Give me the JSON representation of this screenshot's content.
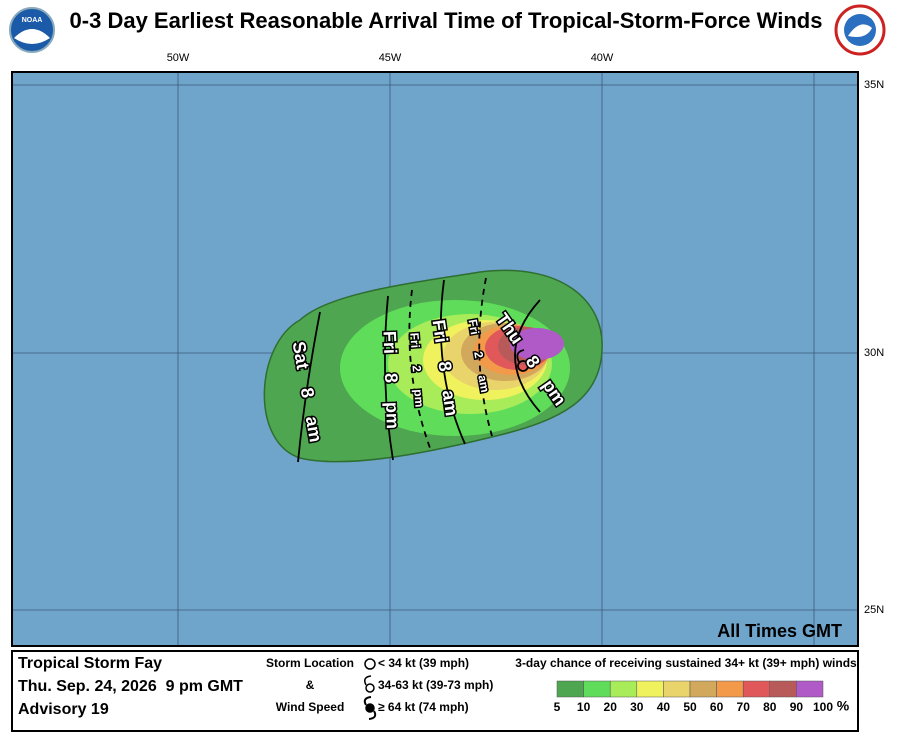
{
  "header": {
    "title": "0-3 Day Earliest Reasonable Arrival Time of Tropical-Storm-Force Winds",
    "logo_text": "NOAA"
  },
  "map": {
    "longitude_labels": [
      "50W",
      "45W",
      "40W"
    ],
    "latitude_labels": [
      "35N",
      "30N",
      "25N"
    ],
    "contour_labels": [
      "Sat 8 am",
      "Fri 8 pm",
      "Fri 2 pm",
      "Fri 8 am",
      "Fri 2 am",
      "Thu 8 pm"
    ],
    "time_note": "All Times GMT"
  },
  "footer": {
    "storm_name": "Tropical Storm Fay",
    "date": "Thu. Sep. 24, 2026  9 pm GMT",
    "advisory": "Advisory 19",
    "storm_legend_title": [
      "Storm Location",
      "&",
      "Wind Speed"
    ],
    "storm_legend_items": [
      "< 34 kt (39 mph)",
      "34-63 kt (39-73 mph)",
      "≥ 64 kt (74 mph)"
    ],
    "scale_title": "3-day chance of receiving sustained 34+ kt (39+ mph) winds",
    "scale_labels": [
      "5",
      "10",
      "20",
      "30",
      "40",
      "50",
      "60",
      "70",
      "80",
      "90",
      "100"
    ],
    "scale_unit": "%",
    "scale_colors": [
      "#4fa650",
      "#5fdc5a",
      "#a8ec5a",
      "#eff25c",
      "#e8d46a",
      "#d2a85c",
      "#f29a4a",
      "#e0585a",
      "#b85a5a",
      "#b05ac8"
    ]
  }
}
